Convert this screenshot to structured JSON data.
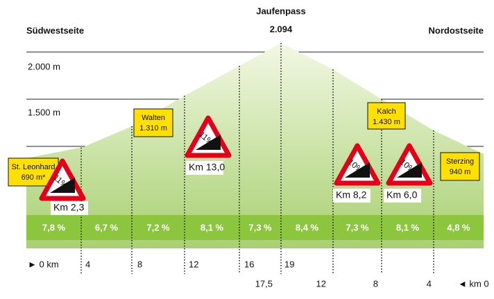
{
  "header": {
    "left": "Südwestseite",
    "peak_name": "Jaufenpass",
    "peak_elevation": "2.094",
    "right": "Nordostseite"
  },
  "elevation_labels": [
    "2.000 m",
    "1.500 m"
  ],
  "segments": [
    "7,8 %",
    "6,7 %",
    "7,2 %",
    "8,1 %",
    "7,3 %",
    "8,4 %",
    "7,3 %",
    "8,1 %",
    "4,8 %"
  ],
  "km_south": [
    "► 0 km",
    "4",
    "8",
    "12",
    "16",
    "19"
  ],
  "km_north": [
    "17,5",
    "12",
    "8",
    "4",
    "◄ km 0"
  ],
  "locations": [
    {
      "name": "St. Leonhard",
      "elevation": "690 m*"
    },
    {
      "name": "Walten",
      "elevation": "1.310 m"
    },
    {
      "name": "Kalch",
      "elevation": "1.430 m"
    },
    {
      "name": "Sterzing",
      "elevation": "940 m"
    }
  ],
  "signs": [
    {
      "grade": "11%",
      "km": "Km 2,3"
    },
    {
      "grade": "11%",
      "km": "Km 13,0"
    },
    {
      "grade": "10%",
      "km": "Km 8,2"
    },
    {
      "grade": "10%",
      "km": "Km 6,0"
    }
  ]
}
